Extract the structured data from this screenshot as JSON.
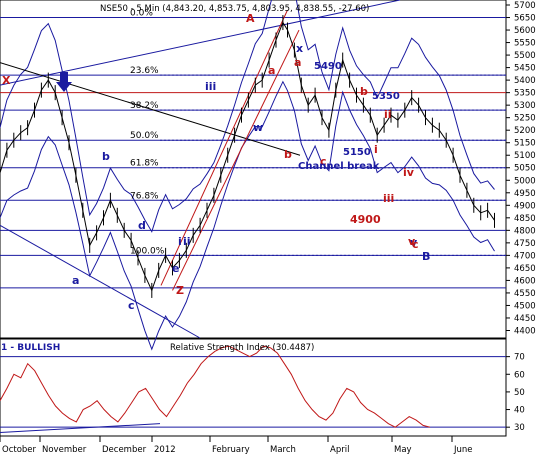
{
  "chart_data": [
    {
      "type": "line",
      "title": "NSE50 - 5 Min (4,843.20, 4,853.75, 4,803.95, 4,838.55, -27.60)",
      "ylim": [
        4370,
        5720
      ],
      "y_ticks": [
        4400,
        4450,
        4500,
        4550,
        4600,
        4650,
        4700,
        4750,
        4800,
        4850,
        4900,
        4950,
        5000,
        5050,
        5100,
        5150,
        5200,
        5250,
        5300,
        5350,
        5400,
        5450,
        5500,
        5550,
        5600,
        5650,
        5700
      ],
      "x_labels": [
        "October",
        "November",
        "December",
        "2012",
        "February",
        "March",
        "April",
        "May",
        "June"
      ],
      "price_points": [
        [
          0,
          5030
        ],
        [
          6,
          5120
        ],
        [
          12,
          5160
        ],
        [
          18,
          5190
        ],
        [
          24,
          5210
        ],
        [
          30,
          5280
        ],
        [
          36,
          5360
        ],
        [
          42,
          5400
        ],
        [
          48,
          5350
        ],
        [
          54,
          5250
        ],
        [
          60,
          5150
        ],
        [
          66,
          5020
        ],
        [
          72,
          4880
        ],
        [
          78,
          4740
        ],
        [
          84,
          4790
        ],
        [
          90,
          4850
        ],
        [
          96,
          4920
        ],
        [
          102,
          4860
        ],
        [
          108,
          4800
        ],
        [
          114,
          4760
        ],
        [
          120,
          4690
        ],
        [
          126,
          4620
        ],
        [
          132,
          4560
        ],
        [
          138,
          4640
        ],
        [
          144,
          4700
        ],
        [
          150,
          4650
        ],
        [
          156,
          4680
        ],
        [
          162,
          4720
        ],
        [
          168,
          4780
        ],
        [
          174,
          4820
        ],
        [
          180,
          4880
        ],
        [
          186,
          4940
        ],
        [
          192,
          5020
        ],
        [
          198,
          5100
        ],
        [
          204,
          5180
        ],
        [
          210,
          5260
        ],
        [
          216,
          5320
        ],
        [
          222,
          5380
        ],
        [
          228,
          5400
        ],
        [
          234,
          5480
        ],
        [
          240,
          5560
        ],
        [
          246,
          5630
        ],
        [
          250,
          5600
        ],
        [
          256,
          5520
        ],
        [
          262,
          5380
        ],
        [
          268,
          5300
        ],
        [
          274,
          5340
        ],
        [
          280,
          5250
        ],
        [
          286,
          5200
        ],
        [
          292,
          5360
        ],
        [
          298,
          5480
        ],
        [
          304,
          5400
        ],
        [
          310,
          5340
        ],
        [
          316,
          5300
        ],
        [
          322,
          5260
        ],
        [
          328,
          5180
        ],
        [
          334,
          5220
        ],
        [
          340,
          5260
        ],
        [
          346,
          5240
        ],
        [
          352,
          5280
        ],
        [
          358,
          5330
        ],
        [
          364,
          5300
        ],
        [
          370,
          5250
        ],
        [
          376,
          5220
        ],
        [
          382,
          5200
        ],
        [
          388,
          5160
        ],
        [
          394,
          5100
        ],
        [
          400,
          5020
        ],
        [
          406,
          4960
        ],
        [
          412,
          4900
        ],
        [
          418,
          4870
        ],
        [
          424,
          4880
        ],
        [
          430,
          4840
        ]
      ],
      "annotations": {
        "fib_levels": [
          {
            "label": "0.0%",
            "value": 5650
          },
          {
            "label": "23.6%",
            "value": 5420
          },
          {
            "label": "38.2%",
            "value": 5280
          },
          {
            "label": "50.0%",
            "value": 5160
          },
          {
            "label": "61.8%",
            "value": 5050
          },
          {
            "label": "76.8%",
            "value": 4920
          },
          {
            "label": "100.0%",
            "value": 4700
          }
        ],
        "horizontal_levels": [
          5650,
          5420,
          5350,
          5280,
          5160,
          5050,
          4920,
          4800,
          4700,
          4570
        ],
        "text": [
          "X",
          "A",
          "Z",
          "B",
          "5490",
          "5350",
          "5150",
          "4900",
          "Channel break"
        ],
        "wave_labels": [
          "a",
          "b",
          "c",
          "d",
          "e",
          "iii",
          "v",
          "w",
          "x",
          "i",
          "ii",
          "iii",
          "iv",
          "v",
          "c",
          "a",
          "b",
          "a",
          "b"
        ]
      }
    },
    {
      "type": "line",
      "title": "Relative Strength Index (30.4487)",
      "left_label": "1 - BULLISH",
      "ylim": [
        25,
        80
      ],
      "y_ticks": [
        30,
        40,
        50,
        60,
        70
      ],
      "reference_levels": [
        70,
        30
      ],
      "values": [
        45,
        52,
        60,
        58,
        66,
        62,
        55,
        48,
        42,
        38,
        35,
        33,
        40,
        42,
        45,
        40,
        36,
        33,
        38,
        44,
        50,
        52,
        46,
        40,
        36,
        42,
        48,
        55,
        60,
        66,
        70,
        73,
        75,
        76,
        74,
        72,
        70,
        72,
        76,
        75,
        72,
        66,
        60,
        52,
        45,
        40,
        36,
        34,
        38,
        46,
        52,
        50,
        44,
        40,
        38,
        35,
        32,
        30,
        33,
        36,
        34,
        31,
        30
      ]
    }
  ],
  "wave_text": [
    {
      "t": "X",
      "c": "r"
    },
    {
      "t": "A",
      "c": "r"
    },
    {
      "t": "Z",
      "c": "r"
    },
    {
      "t": "B",
      "c": "b"
    },
    {
      "t": "a",
      "c": "b"
    },
    {
      "t": "b",
      "c": "b"
    },
    {
      "t": "c",
      "c": "b"
    },
    {
      "t": "d",
      "c": "b"
    },
    {
      "t": "e",
      "c": "b"
    },
    {
      "t": "iii",
      "c": "b"
    },
    {
      "t": "v",
      "c": "b"
    },
    {
      "t": "w",
      "c": "b"
    },
    {
      "t": "x",
      "c": "b"
    },
    {
      "t": "i",
      "c": "b"
    },
    {
      "t": "ii",
      "c": "b"
    },
    {
      "t": "a",
      "c": "r"
    },
    {
      "t": "b",
      "c": "r"
    },
    {
      "t": "c",
      "c": "r"
    },
    {
      "t": "a",
      "c": "r"
    },
    {
      "t": "b",
      "c": "r"
    },
    {
      "t": "iii",
      "c": "r"
    },
    {
      "t": "iv",
      "c": "r"
    },
    {
      "t": "v",
      "c": "r"
    },
    {
      "t": "i",
      "c": "r"
    },
    {
      "t": "ii",
      "c": "r"
    },
    {
      "t": "c",
      "c": "r"
    }
  ],
  "level_text": [
    "5490",
    "5350",
    "5150",
    "4900",
    "Channel break"
  ]
}
